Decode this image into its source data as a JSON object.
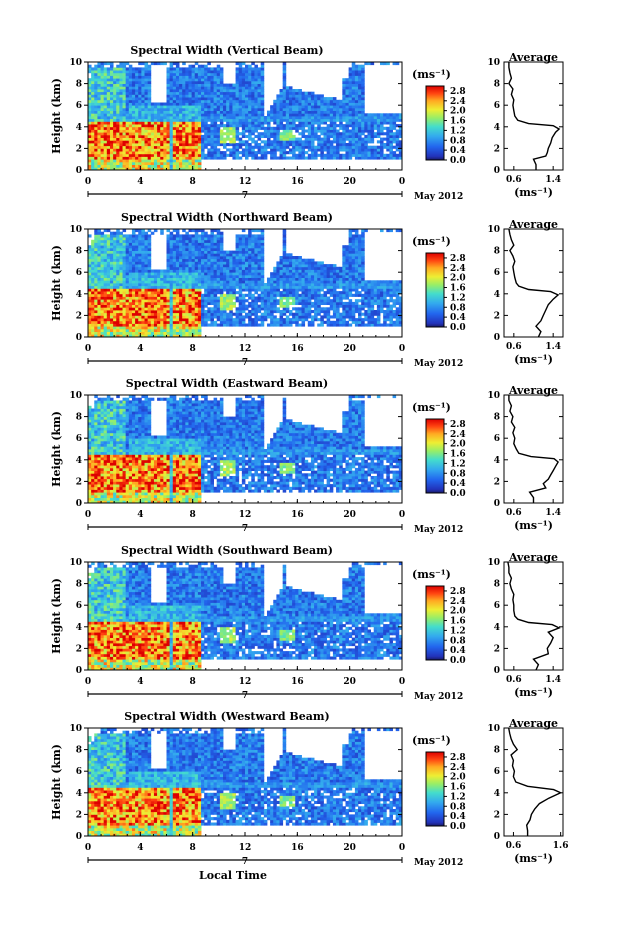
{
  "chart_data": {
    "type": "heatmap",
    "x_axis": {
      "label": "Local Time",
      "ticks": [
        "0",
        "4",
        "8",
        "12",
        "16",
        "20",
        "0"
      ],
      "date_mark": "7",
      "month": "May 2012",
      "range": [
        0,
        24
      ]
    },
    "y_axis": {
      "label": "Height (km)",
      "ticks": [
        "0",
        "2",
        "4",
        "6",
        "8",
        "10"
      ],
      "range": [
        0,
        10
      ]
    },
    "colorbar": {
      "unit": "(ms⁻¹)",
      "ticks": [
        "0.0",
        "0.4",
        "0.8",
        "1.2",
        "1.6",
        "2.0",
        "2.4",
        "2.8"
      ],
      "range": [
        0,
        3.0
      ]
    },
    "average_title": "Average",
    "average_xlabel": "(ms⁻¹)",
    "panels": [
      {
        "title": "Spectral Width (Vertical Beam)",
        "avg_xticks": [
          "0.6",
          "1.4"
        ],
        "avg_xlim": [
          0.4,
          1.6
        ],
        "profile": [
          [
            0.0,
            1.05
          ],
          [
            0.5,
            1.05
          ],
          [
            1.0,
            1.0
          ],
          [
            1.3,
            1.25
          ],
          [
            1.6,
            1.28
          ],
          [
            2.0,
            1.3
          ],
          [
            2.5,
            1.35
          ],
          [
            3.0,
            1.38
          ],
          [
            3.5,
            1.45
          ],
          [
            3.8,
            1.52
          ],
          [
            4.1,
            1.4
          ],
          [
            4.3,
            0.9
          ],
          [
            4.6,
            0.68
          ],
          [
            5.0,
            0.62
          ],
          [
            5.5,
            0.6
          ],
          [
            6.0,
            0.58
          ],
          [
            6.5,
            0.6
          ],
          [
            7.0,
            0.55
          ],
          [
            7.5,
            0.58
          ],
          [
            8.0,
            0.5
          ],
          [
            8.5,
            0.55
          ],
          [
            9.0,
            0.52
          ],
          [
            9.5,
            0.5
          ],
          [
            10.0,
            0.5
          ]
        ]
      },
      {
        "title": "Spectral Width (Northward Beam)",
        "avg_xticks": [
          "0.6",
          "1.4"
        ],
        "avg_xlim": [
          0.4,
          1.6
        ],
        "profile": [
          [
            0.0,
            1.1
          ],
          [
            0.5,
            1.15
          ],
          [
            1.0,
            1.05
          ],
          [
            1.5,
            1.15
          ],
          [
            2.0,
            1.2
          ],
          [
            2.5,
            1.25
          ],
          [
            3.0,
            1.3
          ],
          [
            3.5,
            1.4
          ],
          [
            3.9,
            1.5
          ],
          [
            4.2,
            1.35
          ],
          [
            4.4,
            0.9
          ],
          [
            4.7,
            0.7
          ],
          [
            5.0,
            0.65
          ],
          [
            5.5,
            0.62
          ],
          [
            6.0,
            0.6
          ],
          [
            6.5,
            0.58
          ],
          [
            7.0,
            0.62
          ],
          [
            7.5,
            0.58
          ],
          [
            8.0,
            0.52
          ],
          [
            8.5,
            0.6
          ],
          [
            9.0,
            0.55
          ],
          [
            9.5,
            0.52
          ],
          [
            10.0,
            0.5
          ]
        ]
      },
      {
        "title": "Spectral Width (Eastward Beam)",
        "avg_xticks": [
          "0.6",
          "1.4"
        ],
        "avg_xlim": [
          0.4,
          1.6
        ],
        "profile": [
          [
            0.0,
            1.0
          ],
          [
            0.5,
            1.0
          ],
          [
            1.0,
            0.92
          ],
          [
            1.4,
            1.25
          ],
          [
            1.8,
            1.2
          ],
          [
            2.2,
            1.3
          ],
          [
            2.6,
            1.35
          ],
          [
            3.0,
            1.4
          ],
          [
            3.4,
            1.45
          ],
          [
            3.8,
            1.5
          ],
          [
            4.1,
            1.42
          ],
          [
            4.3,
            0.95
          ],
          [
            4.6,
            0.7
          ],
          [
            5.0,
            0.65
          ],
          [
            5.5,
            0.6
          ],
          [
            6.0,
            0.62
          ],
          [
            6.5,
            0.58
          ],
          [
            7.0,
            0.62
          ],
          [
            7.5,
            0.55
          ],
          [
            8.0,
            0.58
          ],
          [
            8.5,
            0.52
          ],
          [
            9.0,
            0.55
          ],
          [
            9.5,
            0.5
          ],
          [
            10.0,
            0.5
          ]
        ]
      },
      {
        "title": "Spectral Width (Southward Beam)",
        "avg_xticks": [
          "0.6",
          "1.4"
        ],
        "avg_xlim": [
          0.4,
          1.6
        ],
        "profile": [
          [
            0.0,
            1.05
          ],
          [
            0.5,
            1.1
          ],
          [
            1.0,
            1.0
          ],
          [
            1.5,
            1.3
          ],
          [
            2.0,
            1.28
          ],
          [
            2.5,
            1.35
          ],
          [
            3.0,
            1.4
          ],
          [
            3.5,
            1.3
          ],
          [
            3.9,
            1.52
          ],
          [
            4.2,
            1.38
          ],
          [
            4.4,
            0.9
          ],
          [
            4.7,
            0.68
          ],
          [
            5.0,
            0.62
          ],
          [
            5.5,
            0.6
          ],
          [
            6.0,
            0.6
          ],
          [
            6.5,
            0.58
          ],
          [
            7.0,
            0.6
          ],
          [
            7.5,
            0.55
          ],
          [
            8.0,
            0.52
          ],
          [
            8.5,
            0.55
          ],
          [
            9.0,
            0.5
          ],
          [
            9.5,
            0.5
          ],
          [
            10.0,
            0.48
          ]
        ]
      },
      {
        "title": "Spectral Width (Westward Beam)",
        "avg_xticks": [
          "0.6",
          "1.6"
        ],
        "avg_xlim": [
          0.4,
          1.65
        ],
        "profile": [
          [
            0.0,
            0.9
          ],
          [
            0.5,
            0.9
          ],
          [
            1.0,
            0.88
          ],
          [
            1.5,
            0.95
          ],
          [
            2.0,
            0.98
          ],
          [
            2.5,
            1.05
          ],
          [
            3.0,
            1.15
          ],
          [
            3.5,
            1.35
          ],
          [
            4.0,
            1.6
          ],
          [
            4.3,
            1.45
          ],
          [
            4.6,
            0.9
          ],
          [
            5.0,
            0.65
          ],
          [
            5.5,
            0.6
          ],
          [
            6.0,
            0.62
          ],
          [
            6.5,
            0.58
          ],
          [
            7.0,
            0.6
          ],
          [
            7.5,
            0.55
          ],
          [
            8.0,
            0.68
          ],
          [
            8.5,
            0.6
          ],
          [
            9.0,
            0.55
          ],
          [
            9.5,
            0.52
          ],
          [
            10.0,
            0.5
          ]
        ]
      }
    ]
  }
}
